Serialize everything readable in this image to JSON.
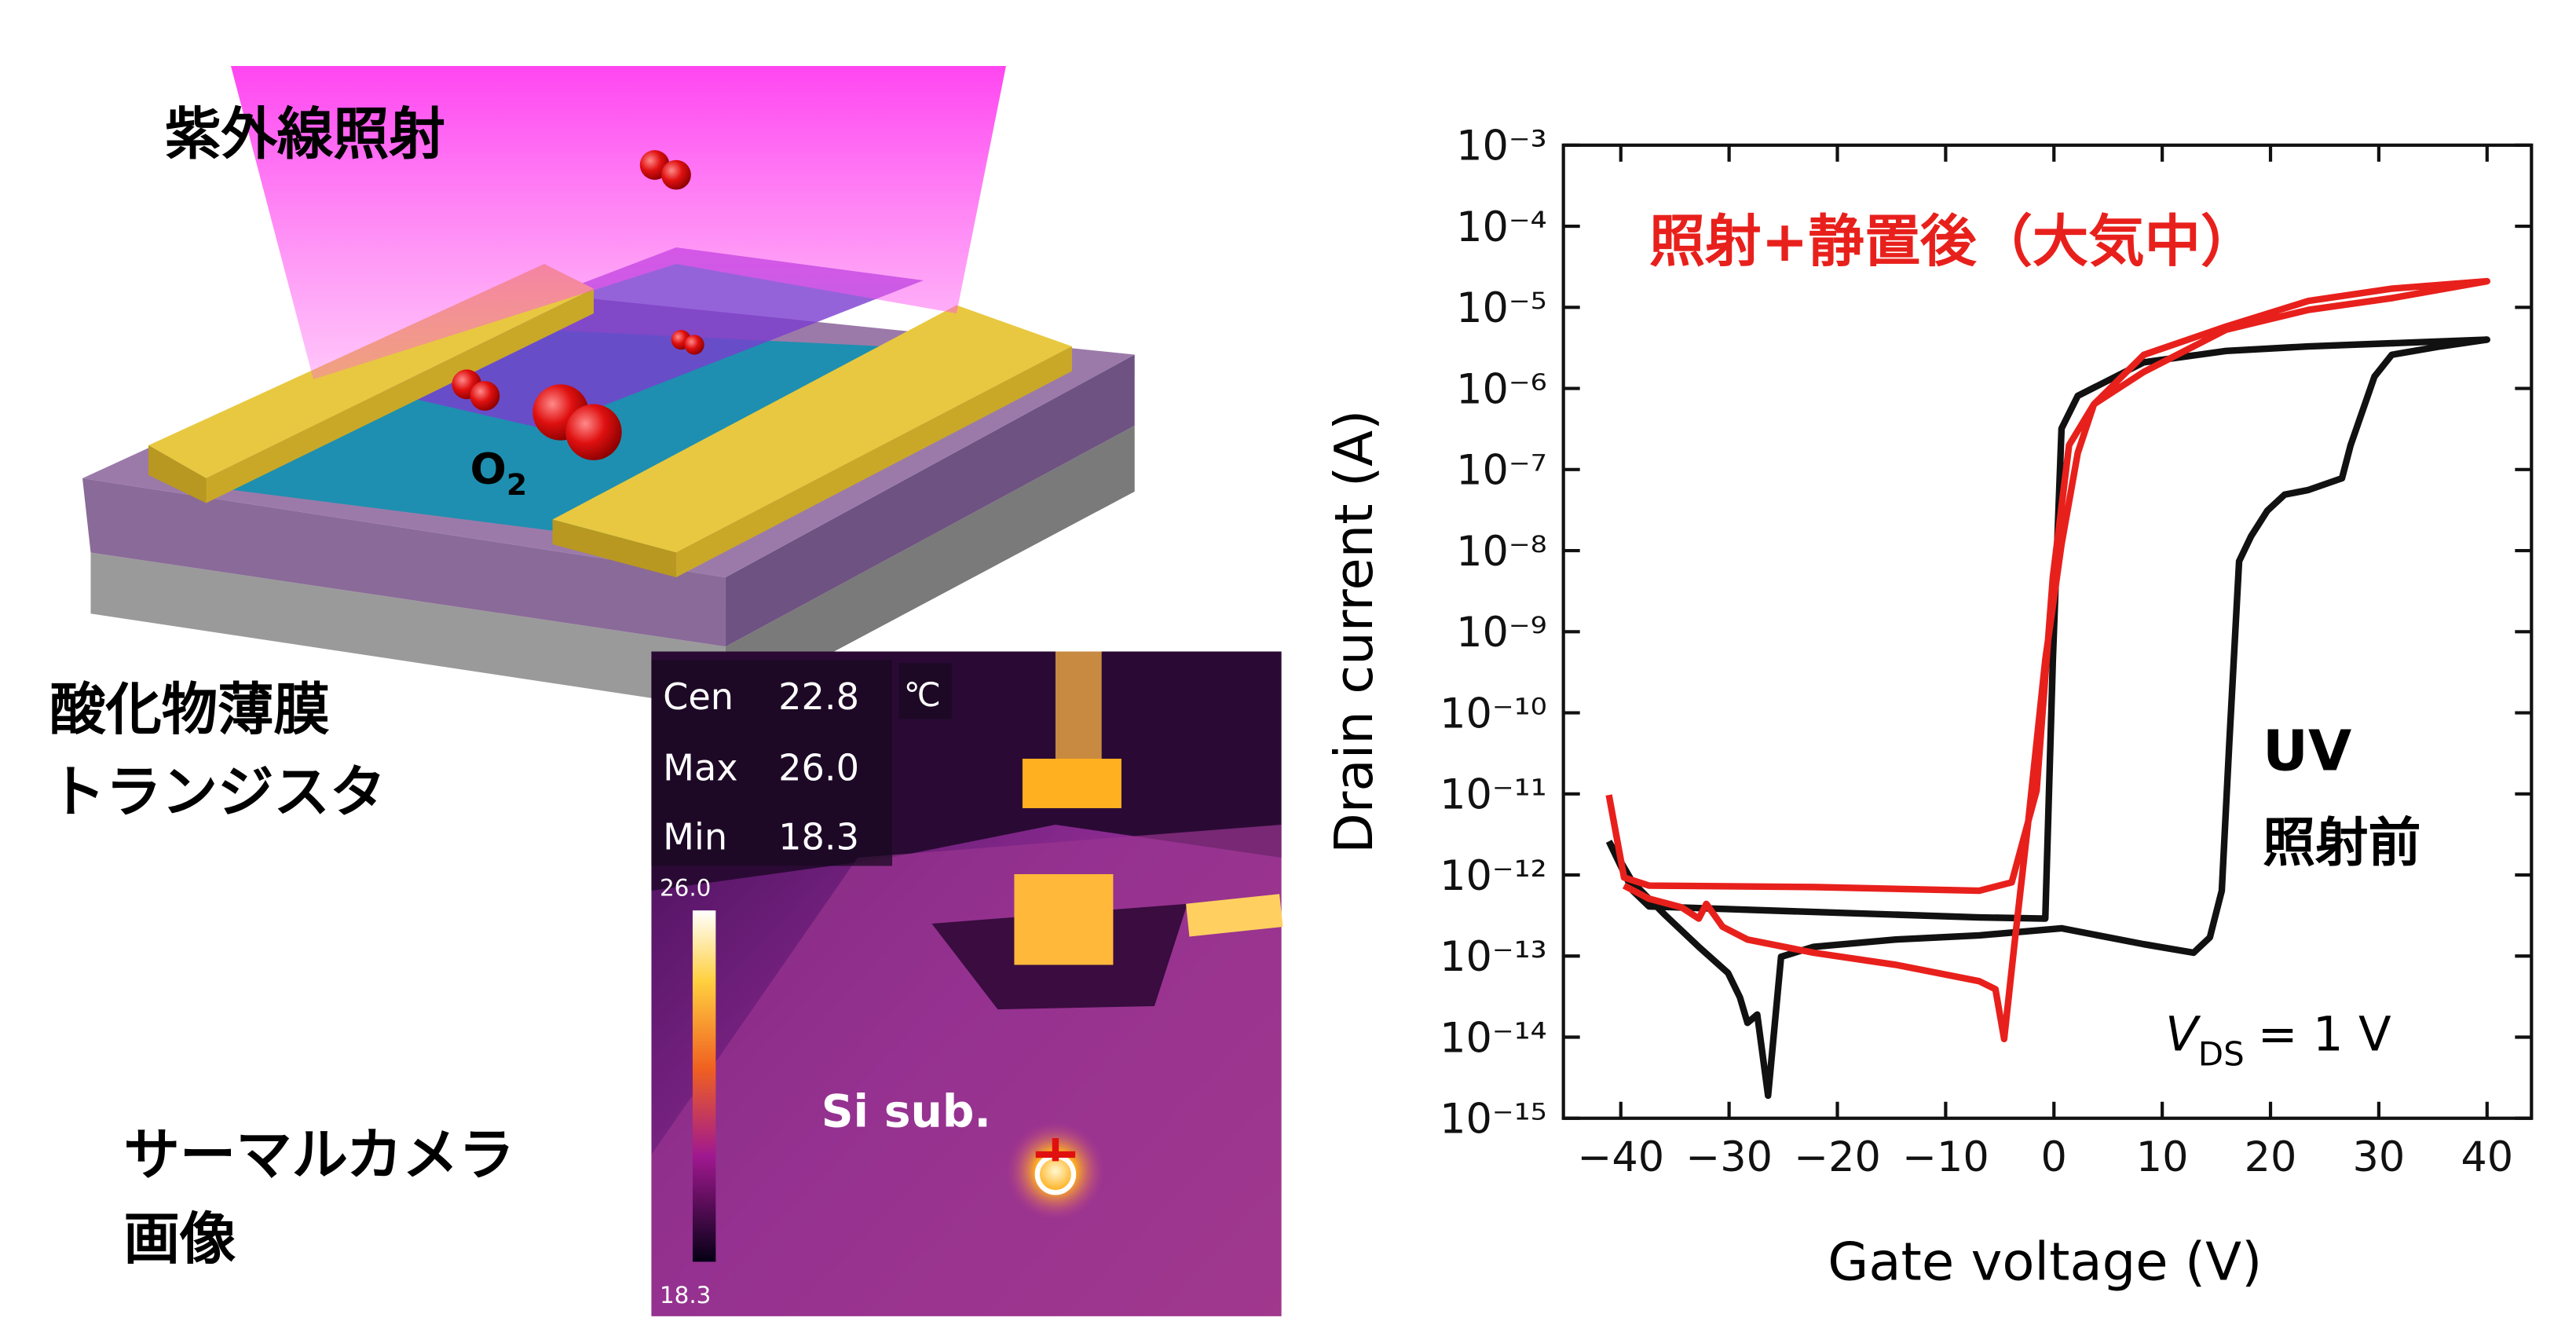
{
  "illustration": {
    "beam_label": "紫外線照射",
    "molecule": {
      "symbol": "O",
      "subscript": "2"
    },
    "device_label": [
      "酸化物薄膜",
      "トランジスタ"
    ]
  },
  "thermal": {
    "caption": [
      "サーマルカメラ",
      "画像"
    ],
    "readings": [
      [
        "Cen",
        "22.8"
      ],
      [
        "Max",
        "26.0"
      ],
      [
        "Min",
        "18.3"
      ]
    ],
    "unit": "℃",
    "scale": [
      "26.0",
      "18.3"
    ],
    "label": "Si sub."
  },
  "chart_data": {
    "type": "line",
    "xlabel": "Gate voltage (V)",
    "ylabel": "Drain current (A)",
    "xlim": [
      -45.3,
      44.1
    ],
    "ylim": [
      1e-15,
      0.001
    ],
    "log_y": true,
    "xticks": [
      {
        "value": -40,
        "label": "−40"
      },
      {
        "value": -30,
        "label": "−30"
      },
      {
        "value": -20,
        "label": "−20"
      },
      {
        "value": -10,
        "label": "−10"
      },
      0,
      10,
      20,
      30,
      40
    ],
    "yticks": [
      {
        "value": 1e-15,
        "label": "10⁻¹⁵"
      },
      {
        "value": 1e-14,
        "label": "10⁻¹⁴"
      },
      {
        "value": 1e-13,
        "label": "10⁻¹³"
      },
      {
        "value": 1e-12,
        "label": "10⁻¹²"
      },
      {
        "value": 1e-11,
        "label": "10⁻¹¹"
      },
      {
        "value": 1e-10,
        "label": "10⁻¹⁰"
      },
      {
        "value": 1e-09,
        "label": "10⁻⁹"
      },
      {
        "value": 1e-08,
        "label": "10⁻⁸"
      },
      {
        "value": 1e-07,
        "label": "10⁻⁷"
      },
      {
        "value": 1e-06,
        "label": "10⁻⁶"
      },
      {
        "value": 1e-05,
        "label": "10⁻⁵"
      },
      {
        "value": 0.0001,
        "label": "10⁻⁴"
      },
      {
        "value": 0.001,
        "label": "10⁻³"
      }
    ],
    "series": [
      {
        "color": "#111111",
        "x": [
          -41.1,
          -38.9,
          -37.4,
          -22.2,
          -6.9,
          -0.8,
          -0.1,
          0.7,
          2.2,
          8.3,
          15.9,
          23.5,
          40.0,
          35.7,
          31.2,
          29.6,
          27.4,
          26.6,
          23.5,
          21.3,
          19.7,
          18.2,
          17.1,
          16.2,
          15.5,
          14.4,
          12.9,
          8.3,
          0.7,
          -6.9,
          -14.6,
          -22.2,
          -25.2,
          -26.4,
          -27.4,
          -28.3,
          -29.0,
          -30.1,
          -32.8,
          -35.9,
          -38.9,
          -41.1
        ],
        "values": [
          2.6e-12,
          6.4e-13,
          4.1e-13,
          3.5e-13,
          3e-13,
          2.9e-13,
          4.5e-10,
          3.2e-07,
          8.1e-07,
          2.1e-06,
          2.9e-06,
          3.3e-06,
          4e-06,
          3.3e-06,
          2.6e-06,
          1.4e-06,
          2e-07,
          7.8e-08,
          5.6e-08,
          4.9e-08,
          3.1e-08,
          1.5e-08,
          7.4e-09,
          4.4e-11,
          6.4e-13,
          1.7e-13,
          1.1e-13,
          1.4e-13,
          2.2e-13,
          1.8e-13,
          1.6e-13,
          1.3e-13,
          9.8e-14,
          1.9e-15,
          1.9e-14,
          1.5e-14,
          3.1e-14,
          6.2e-14,
          1.3e-13,
          3.2e-13,
          8.1e-13,
          2.6e-12
        ]
      },
      {
        "name": "照射+静置後（大気中）",
        "color": "#e8201c",
        "x": [
          -41.1,
          -39.7,
          -37.4,
          -22.2,
          -6.9,
          -3.9,
          -1.6,
          -0.1,
          1.4,
          3.7,
          8.3,
          15.9,
          23.5,
          31.2,
          40.0,
          31.2,
          23.5,
          15.9,
          8.3,
          3.7,
          2.2,
          0.7,
          -0.8,
          -2.4,
          -3.6,
          -4.6,
          -5.4,
          -6.9,
          -14.6,
          -22.2,
          -28.3,
          -30.6,
          -32.1,
          -32.8,
          -34.4,
          -37.4,
          -39.7
        ],
        "values": [
          9.7e-12,
          9.3e-13,
          7.4e-13,
          7.1e-13,
          6.4e-13,
          8.1e-13,
          1.1e-11,
          4.7e-09,
          2e-07,
          6.4e-07,
          1.6e-06,
          5.3e-06,
          9.3e-06,
          1.3e-05,
          2.1e-05,
          1.7e-05,
          1.2e-05,
          5.8e-06,
          2.6e-06,
          6.4e-07,
          1.6e-07,
          1.2e-08,
          4.5e-10,
          4.2e-12,
          1.6e-13,
          9.5e-15,
          3.9e-14,
          4.9e-14,
          7.8e-14,
          1.1e-13,
          1.6e-13,
          2.3e-13,
          4.4e-13,
          2.9e-13,
          4e-13,
          5.1e-13,
          7.4e-13
        ]
      }
    ],
    "annotations": {
      "uv": [
        "UV",
        "照射前"
      ],
      "vds": {
        "symbol": "V",
        "subscript": "DS",
        "text": "= 1 V"
      }
    }
  }
}
